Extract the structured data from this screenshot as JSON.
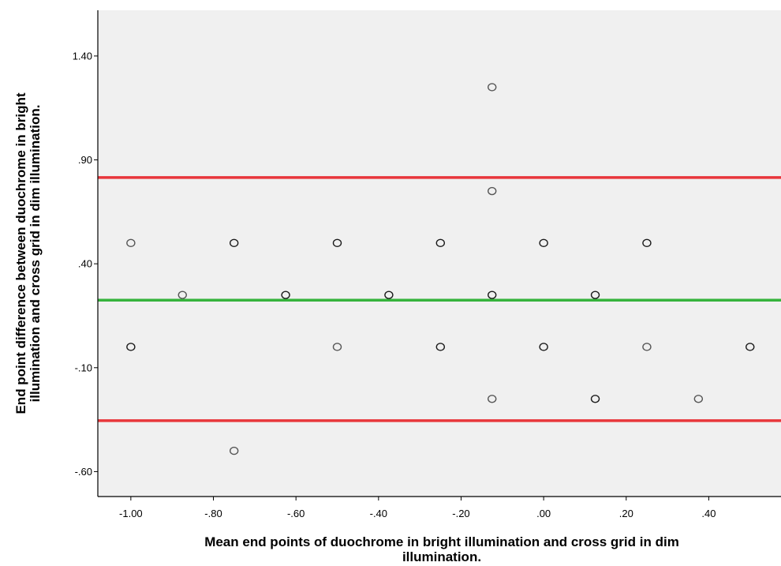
{
  "chart_data": {
    "type": "scatter",
    "title": "",
    "xlabel_lines": [
      "Mean end points of duochrome in bright illumination and cross grid in dim",
      "illumination."
    ],
    "ylabel_lines": [
      "End point difference between duochrome in bright",
      "illumination and cross grid in dim illumination."
    ],
    "xlim": [
      -1.08,
      0.575
    ],
    "ylim": [
      -0.72,
      1.62
    ],
    "x_ticks": [
      -1.0,
      -0.8,
      -0.6,
      -0.4,
      -0.2,
      0.0,
      0.2,
      0.4
    ],
    "x_tick_labels": [
      "-1.00",
      "-.80",
      "-.60",
      "-.40",
      "-.20",
      ".00",
      ".20",
      ".40"
    ],
    "y_ticks": [
      -0.6,
      -0.1,
      0.4,
      0.9,
      1.4
    ],
    "y_tick_labels": [
      "-.60",
      "-.10",
      ".40",
      ".90",
      "1.40"
    ],
    "grid": false,
    "background_color": "#f0f0f0",
    "series": [
      {
        "marker": "open-circle",
        "points": [
          {
            "x": -1.0,
            "y": 0.5,
            "n": 1
          },
          {
            "x": -1.0,
            "y": 0.0,
            "n": 2
          },
          {
            "x": -0.875,
            "y": 0.25,
            "n": 1
          },
          {
            "x": -0.75,
            "y": 0.5,
            "n": 2
          },
          {
            "x": -0.75,
            "y": -0.5,
            "n": 1
          },
          {
            "x": -0.625,
            "y": 0.25,
            "n": 2
          },
          {
            "x": -0.5,
            "y": 0.5,
            "n": 2
          },
          {
            "x": -0.5,
            "y": 0.0,
            "n": 1
          },
          {
            "x": -0.375,
            "y": 0.25,
            "n": 2
          },
          {
            "x": -0.25,
            "y": 0.5,
            "n": 2
          },
          {
            "x": -0.25,
            "y": 0.0,
            "n": 2
          },
          {
            "x": -0.125,
            "y": 1.25,
            "n": 1
          },
          {
            "x": -0.125,
            "y": 0.75,
            "n": 1
          },
          {
            "x": -0.125,
            "y": 0.25,
            "n": 3
          },
          {
            "x": -0.125,
            "y": -0.25,
            "n": 1
          },
          {
            "x": 0.0,
            "y": 0.5,
            "n": 2
          },
          {
            "x": 0.0,
            "y": 0.0,
            "n": 2
          },
          {
            "x": 0.125,
            "y": 0.25,
            "n": 2
          },
          {
            "x": 0.125,
            "y": -0.25,
            "n": 2
          },
          {
            "x": 0.25,
            "y": 0.5,
            "n": 2
          },
          {
            "x": 0.25,
            "y": 0.0,
            "n": 1
          },
          {
            "x": 0.375,
            "y": -0.25,
            "n": 1
          },
          {
            "x": 0.5,
            "y": 0.0,
            "n": 2
          }
        ]
      }
    ],
    "reference_lines": [
      {
        "y": 0.815,
        "color": "#e8363b"
      },
      {
        "y": 0.225,
        "color": "#36b33c"
      },
      {
        "y": -0.355,
        "color": "#e8363b"
      }
    ]
  }
}
